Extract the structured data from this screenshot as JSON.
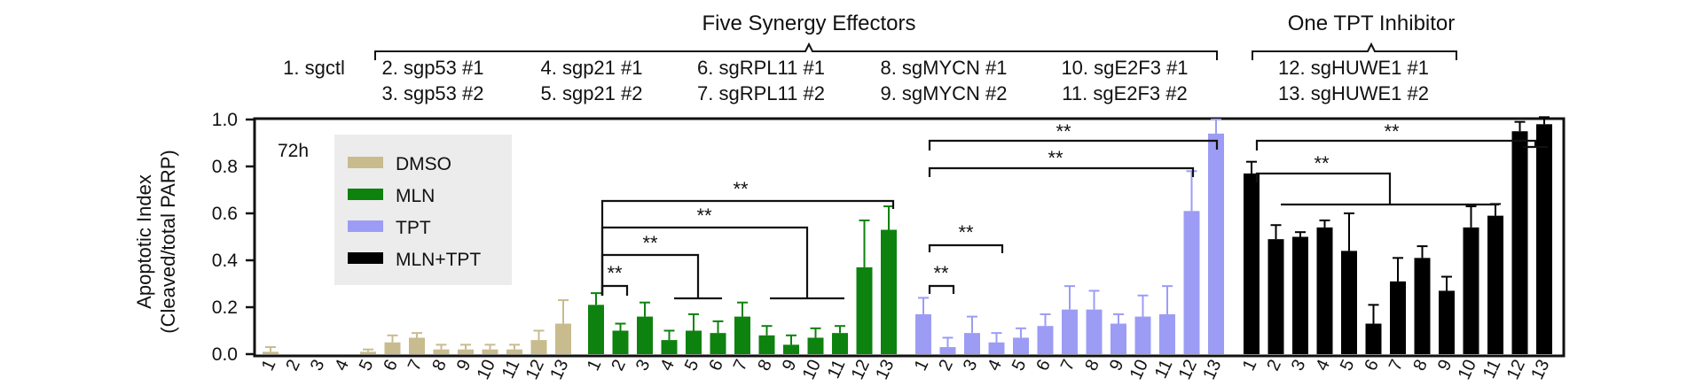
{
  "header": {
    "group_synergy_title": "Five Synergy Effectors",
    "group_inhibitor_title": "One TPT Inhibitor",
    "key_lines": [
      {
        "top": "1. sgctl",
        "bottom": ""
      },
      {
        "top": "2. sgp53 #1",
        "bottom": "3. sgp53 #2"
      },
      {
        "top": "4. sgp21 #1",
        "bottom": "5. sgp21 #2"
      },
      {
        "top": "6. sgRPL11 #1",
        "bottom": "7. sgRPL11 #2"
      },
      {
        "top": "8. sgMYCN #1",
        "bottom": "9. sgMYCN #2"
      },
      {
        "top": "10. sgE2F3 #1",
        "bottom": "11. sgE2F3 #2"
      },
      {
        "top": "12. sgHUWE1 #1",
        "bottom": "13. sgHUWE1 #2"
      }
    ]
  },
  "timepoint_label": "72h",
  "significance_label": "**",
  "chart_data": {
    "type": "bar",
    "ylabel_line1": "Apoptotic Index",
    "ylabel_line2": "(Cleaved/total PARP)",
    "ylim": [
      0,
      1.2
    ],
    "yticks": [
      "0.0",
      "0.2",
      "0.4",
      "0.6",
      "0.8",
      "1.0"
    ],
    "ytick_values": [
      0,
      0.2,
      0.4,
      0.6,
      0.8,
      1.0
    ],
    "categories": [
      "1",
      "2",
      "3",
      "4",
      "5",
      "6",
      "7",
      "8",
      "9",
      "10",
      "11",
      "12",
      "13"
    ],
    "legend": {
      "placement": "top-left",
      "entries": [
        {
          "name": "DMSO",
          "color": "#c8bb8e"
        },
        {
          "name": "MLN",
          "color": "#0e820e"
        },
        {
          "name": "TPT",
          "color": "#9c9cf5"
        },
        {
          "name": "MLN+TPT",
          "color": "#000000"
        }
      ]
    },
    "series": [
      {
        "name": "DMSO",
        "color": "#c8bb8e",
        "values": [
          0.01,
          0.0,
          0.0,
          0.0,
          0.01,
          0.05,
          0.07,
          0.02,
          0.02,
          0.02,
          0.02,
          0.06,
          0.13
        ],
        "errors": [
          0.02,
          0.0,
          0.0,
          0.0,
          0.01,
          0.03,
          0.02,
          0.02,
          0.02,
          0.02,
          0.02,
          0.04,
          0.1
        ]
      },
      {
        "name": "MLN",
        "color": "#0e820e",
        "values": [
          0.21,
          0.1,
          0.16,
          0.06,
          0.1,
          0.09,
          0.16,
          0.08,
          0.04,
          0.07,
          0.09,
          0.37,
          0.53
        ],
        "errors": [
          0.05,
          0.03,
          0.06,
          0.04,
          0.07,
          0.05,
          0.06,
          0.04,
          0.04,
          0.04,
          0.03,
          0.2,
          0.1
        ]
      },
      {
        "name": "TPT",
        "color": "#9c9cf5",
        "values": [
          0.17,
          0.03,
          0.09,
          0.05,
          0.07,
          0.12,
          0.19,
          0.19,
          0.13,
          0.16,
          0.17,
          0.61,
          0.94
        ],
        "errors": [
          0.07,
          0.04,
          0.07,
          0.04,
          0.04,
          0.05,
          0.1,
          0.08,
          0.04,
          0.09,
          0.12,
          0.17,
          0.06
        ]
      },
      {
        "name": "MLN+TPT",
        "color": "#000000",
        "values": [
          0.77,
          0.49,
          0.5,
          0.54,
          0.44,
          0.13,
          0.31,
          0.41,
          0.27,
          0.54,
          0.59,
          0.95,
          0.98
        ],
        "errors": [
          0.05,
          0.06,
          0.02,
          0.03,
          0.16,
          0.08,
          0.1,
          0.05,
          0.06,
          0.09,
          0.05,
          0.04,
          0.03
        ]
      }
    ]
  }
}
